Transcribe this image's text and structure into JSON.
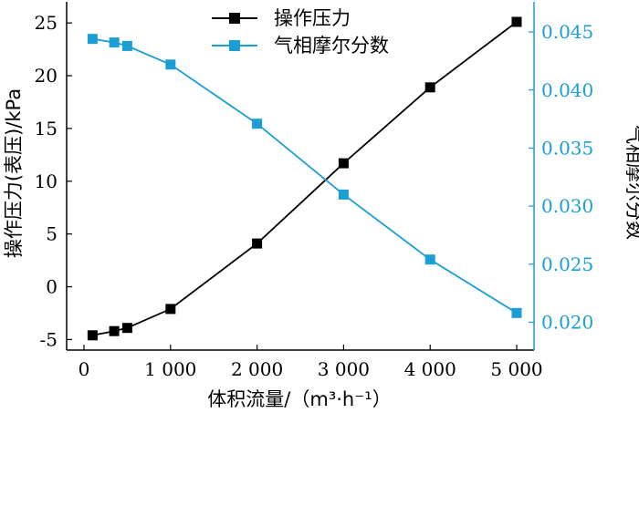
{
  "chart_data": {
    "type": "line",
    "xlabel": "体积流量/（m³·h⁻¹）",
    "x_ticks": [
      "0",
      "1 000",
      "2 000",
      "3 000",
      "4 000",
      "5 000"
    ],
    "x_tick_values": [
      0,
      1000,
      2000,
      3000,
      4000,
      5000
    ],
    "xlim": [
      -200,
      5200
    ],
    "left_axis": {
      "label": "操作压力(表压)/kPa",
      "ylim": [
        -6,
        27
      ],
      "ticks": [
        "-5",
        "0",
        "5",
        "10",
        "15",
        "20",
        "25"
      ],
      "tick_values": [
        -5,
        0,
        5,
        10,
        15,
        20,
        25
      ],
      "color": "#000000"
    },
    "right_axis": {
      "label": "气相摩尔分数",
      "ylim": [
        0.0176,
        0.0476
      ],
      "ticks": [
        "0.020",
        "0.025",
        "0.030",
        "0.035",
        "0.040",
        "0.045"
      ],
      "tick_values": [
        0.02,
        0.025,
        0.03,
        0.035,
        0.04,
        0.045
      ],
      "color": "#1a9ed4"
    },
    "series": [
      {
        "name": "操作压力",
        "axis": "left",
        "color": "#000000",
        "marker": "square",
        "x": [
          100,
          350,
          500,
          1000,
          2000,
          3000,
          4000,
          5000
        ],
        "values": [
          -4.6,
          -4.2,
          -3.9,
          -2.1,
          4.1,
          11.7,
          18.9,
          25.1
        ]
      },
      {
        "name": "气相摩尔分数",
        "axis": "right",
        "color": "#1a9ed4",
        "marker": "square",
        "x": [
          100,
          350,
          500,
          1000,
          2000,
          3000,
          4000,
          5000
        ],
        "values": [
          0.0444,
          0.0441,
          0.0438,
          0.0422,
          0.0371,
          0.031,
          0.0254,
          0.0208
        ]
      }
    ],
    "legend_position": "top-center",
    "grid": false
  }
}
